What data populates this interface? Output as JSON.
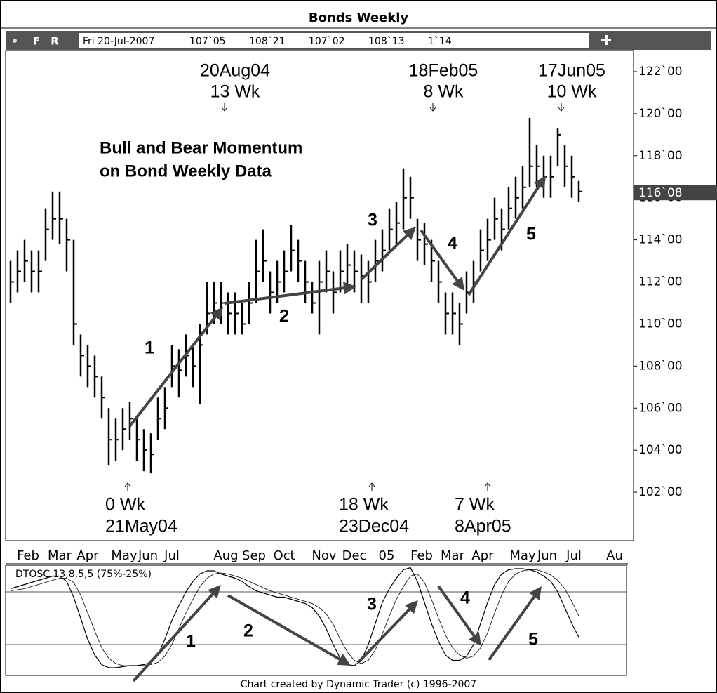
{
  "window": {
    "title": "Bonds Weekly"
  },
  "toolbar": {
    "buttons": [
      "F",
      "R"
    ],
    "quote": [
      "Fri 20-Jul-2007",
      "107`05",
      "108`21",
      "107`02",
      "108`13",
      "1`14"
    ]
  },
  "chart_data": [
    {
      "type": "ohlc",
      "annotation_title": [
        "Bull and Bear Momentum",
        "on Bond Weekly Data"
      ],
      "color": "#000000",
      "high": [
        113,
        113.5,
        114,
        113.5,
        113.5,
        115.5,
        116.3,
        116.3,
        115,
        114,
        109.5,
        109,
        108.5,
        107.5,
        106,
        105.5,
        106,
        106.3,
        105.5,
        105,
        104.8,
        106.5,
        107,
        109,
        108.8,
        109.5,
        109,
        110,
        112,
        112,
        112,
        111.5,
        111.5,
        111,
        112,
        114,
        114.5,
        112.5,
        113,
        113.5,
        114.7,
        114,
        113,
        112,
        113,
        113.5,
        112.5,
        113.5,
        113.8,
        113.5,
        113.3,
        113,
        114,
        114.5,
        115.5,
        115.8,
        117.4,
        117,
        115,
        114.8,
        114,
        113,
        111.5,
        111.5,
        111,
        112.5,
        113,
        114.5,
        115,
        116,
        115.5,
        116.5,
        117,
        117.5,
        119.8,
        118.5,
        118,
        118,
        119.3,
        118.5,
        118,
        116.8
      ],
      "low": [
        111,
        111.5,
        112,
        111.5,
        111.5,
        113,
        114,
        113.8,
        112.5,
        109,
        107.5,
        107,
        106.5,
        105.5,
        103.3,
        103.5,
        104,
        104.5,
        103.5,
        103,
        102.9,
        104.5,
        105,
        107,
        106.5,
        107.5,
        107,
        106.2,
        109.5,
        110,
        110,
        109.5,
        109.5,
        109.5,
        110,
        111,
        112,
        110.5,
        111,
        111.5,
        112.5,
        112,
        111,
        110.5,
        109.5,
        111.5,
        110.5,
        111.5,
        111.8,
        111.5,
        111,
        111,
        112,
        112.5,
        113.5,
        113.8,
        114.5,
        115,
        113,
        112.8,
        112,
        111,
        109.5,
        109.5,
        109,
        110.5,
        111,
        112.5,
        113,
        114,
        113.5,
        114.5,
        115,
        115.5,
        116.5,
        116.5,
        116,
        116,
        117.5,
        116.5,
        116,
        115.8
      ],
      "close": [
        112,
        112.5,
        113,
        112.5,
        112.5,
        114.5,
        115,
        115,
        114,
        110,
        108.5,
        108,
        107.5,
        106.5,
        104.5,
        104.5,
        105,
        105.5,
        104.5,
        104,
        103.8,
        105.5,
        106,
        108,
        107.8,
        108.5,
        108,
        109,
        110.5,
        111,
        111,
        110.5,
        110.5,
        110,
        111,
        112.5,
        113,
        111.5,
        112,
        112.5,
        113.5,
        113,
        112,
        111,
        112,
        112.5,
        111.5,
        112.5,
        112.8,
        112.5,
        112.3,
        112,
        113,
        113.5,
        114.5,
        114.8,
        116,
        116,
        114,
        113.8,
        113,
        112,
        110.5,
        110.5,
        110,
        111.5,
        112,
        113.5,
        114,
        115,
        114.5,
        115.5,
        116,
        116.5,
        117.5,
        117.5,
        117,
        117,
        119,
        117.5,
        117,
        116.3
      ],
      "ylim": [
        99.7,
        123
      ],
      "yticks": [
        {
          "value": 122,
          "label": "122`00"
        },
        {
          "value": 120,
          "label": "120`00"
        },
        {
          "value": 118,
          "label": "118`00"
        },
        {
          "value": 116,
          "label": "116`00"
        },
        {
          "value": 114,
          "label": "114`00"
        },
        {
          "value": 112,
          "label": "112`00"
        },
        {
          "value": 110,
          "label": "110`00"
        },
        {
          "value": 108,
          "label": "108`00"
        },
        {
          "value": 106,
          "label": "106`00"
        },
        {
          "value": 104,
          "label": "104`00"
        },
        {
          "value": 102,
          "label": "102`00"
        }
      ],
      "last_price": {
        "value": 116.25,
        "label": "116`08"
      },
      "x_labels": [
        "Feb",
        "Mar",
        "Apr",
        "May",
        "Jun",
        "Jul",
        "Aug",
        "Sep",
        "Oct",
        "Nov",
        "Dec",
        "05",
        "Feb",
        "Mar",
        "Apr",
        "May",
        "Jun",
        "Jul",
        "Au"
      ],
      "annotations_top": [
        [
          "20Aug04",
          "13 Wk"
        ],
        [
          "18Feb05",
          "8 Wk"
        ],
        [
          "17Jun05",
          "10 Wk"
        ]
      ],
      "annotations_bottom": [
        [
          "0 Wk",
          "21May04"
        ],
        [
          "18 Wk",
          "23Dec04"
        ],
        [
          "7 Wk",
          "8Apr05"
        ]
      ],
      "wave_labels": [
        "1",
        "2",
        "3",
        "4",
        "5"
      ]
    },
    {
      "type": "line",
      "label": "DTOSC 13,8,5,5 (75%-25%)",
      "ylim": [
        0,
        100
      ],
      "levels": [
        25,
        75
      ],
      "series": [
        {
          "color": "#000000",
          "values": [
            78,
            80,
            82,
            84,
            86,
            88,
            90,
            90,
            85,
            70,
            50,
            30,
            15,
            6,
            3,
            3,
            4,
            5,
            5,
            6,
            8,
            15,
            30,
            48,
            62,
            75,
            85,
            92,
            95,
            95,
            92,
            90,
            88,
            85,
            80,
            76,
            74,
            72,
            70,
            70,
            68,
            66,
            64,
            60,
            52,
            40,
            25,
            12,
            6,
            5,
            10,
            25,
            45,
            65,
            78,
            88,
            96,
            98,
            85,
            65,
            45,
            28,
            15,
            10,
            10,
            14,
            25,
            45,
            65,
            82,
            92,
            96,
            97,
            97,
            96,
            94,
            90,
            85,
            75,
            60,
            45,
            32
          ]
        },
        {
          "color": "#000000",
          "values": [
            76,
            77,
            78,
            80,
            82,
            84,
            86,
            88,
            88,
            84,
            72,
            55,
            38,
            22,
            12,
            7,
            5,
            5,
            5,
            5,
            6,
            8,
            14,
            25,
            40,
            55,
            68,
            80,
            88,
            92,
            93,
            92,
            90,
            88,
            85,
            82,
            79,
            76,
            74,
            72,
            70,
            68,
            66,
            64,
            60,
            54,
            44,
            30,
            18,
            10,
            7,
            10,
            20,
            35,
            52,
            68,
            80,
            90,
            92,
            84,
            68,
            50,
            34,
            22,
            15,
            12,
            14,
            22,
            36,
            55,
            72,
            85,
            92,
            95,
            96,
            96,
            94,
            91,
            86,
            78,
            66,
            52
          ]
        }
      ],
      "wave_labels": [
        "1",
        "2",
        "3",
        "4",
        "5"
      ]
    }
  ],
  "footer": "Chart created by Dynamic Trader  (c) 1996-2007"
}
